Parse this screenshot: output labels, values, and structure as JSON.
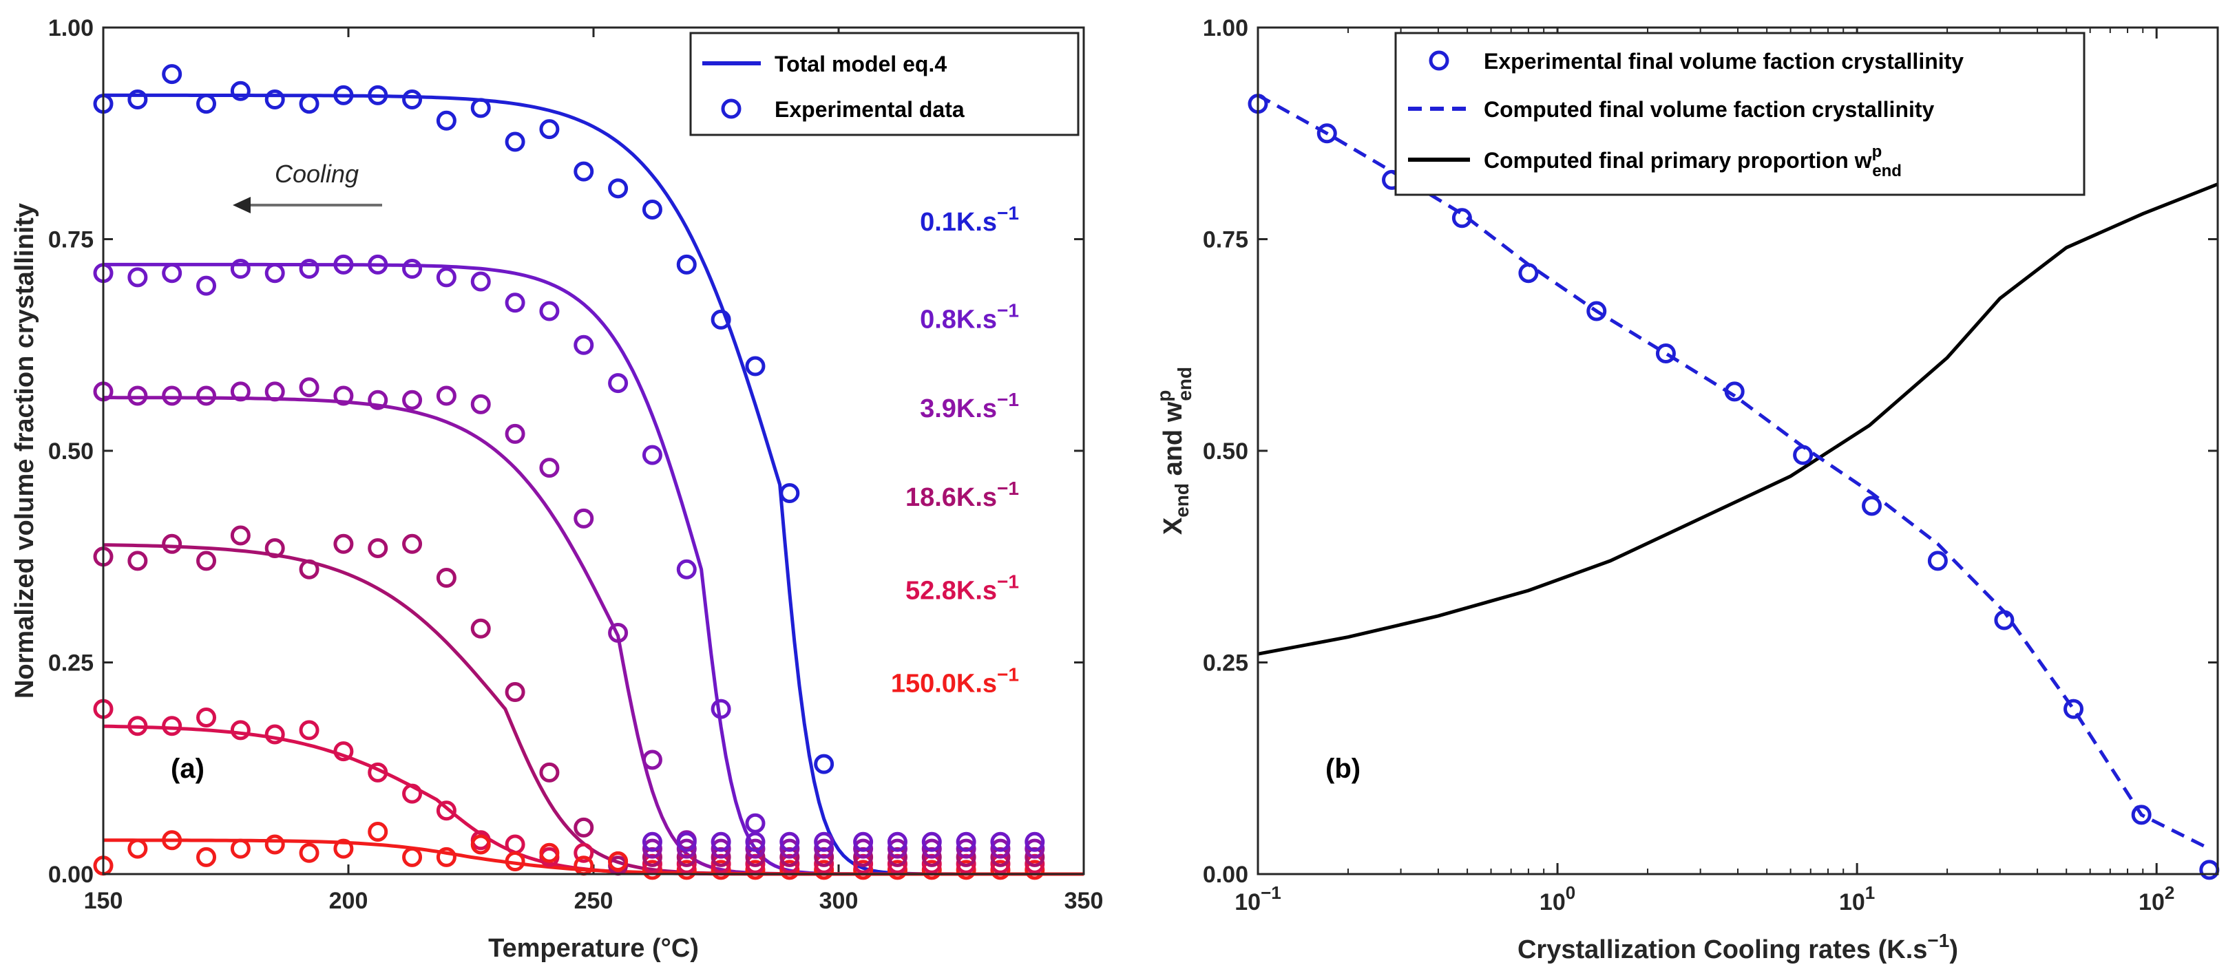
{
  "chart_data": [
    {
      "type": "line",
      "panel_label": "(a)",
      "xlabel": "Temperature (°C)",
      "ylabel": "Normalized volume fraction crystallinity",
      "xlim": [
        150,
        350
      ],
      "ylim": [
        0,
        1
      ],
      "xticks": [
        150,
        200,
        250,
        300,
        350
      ],
      "xtick_labels": [
        "150",
        "200",
        "250",
        "300",
        "350"
      ],
      "yticks": [
        0,
        0.25,
        0.5,
        0.75,
        1
      ],
      "ytick_labels": [
        "0.00",
        "0.25",
        "0.50",
        "0.75",
        "1.00"
      ],
      "legend": {
        "position": "top-right",
        "model": "Total model eq.4",
        "data": "Experimental data"
      },
      "annotation": {
        "text": "Cooling",
        "arrow_from": [
          210,
          0.79
        ],
        "arrow_to": [
          165,
          0.79
        ]
      },
      "series": [
        {
          "label": "0.1K.s",
          "exponent": "−1",
          "color": "#1f1fd6",
          "model": {
            "plateau": 0.92,
            "t_mid": 288,
            "width": 3.5,
            "skew": 12
          },
          "data": {
            "x": [
              150,
              157,
              164,
              171,
              178,
              185,
              192,
              199,
              206,
              213,
              220,
              227,
              234,
              241,
              248,
              255,
              262,
              269,
              276,
              283,
              290,
              297
            ],
            "y": [
              0.91,
              0.915,
              0.945,
              0.91,
              0.925,
              0.915,
              0.91,
              0.92,
              0.92,
              0.915,
              0.89,
              0.905,
              0.865,
              0.88,
              0.83,
              0.81,
              0.785,
              0.72,
              0.655,
              0.6,
              0.45,
              0.13
            ]
          }
        },
        {
          "label": "0.8K.s",
          "exponent": "−1",
          "color": "#6f18c6",
          "model": {
            "plateau": 0.72,
            "t_mid": 272,
            "width": 3.5,
            "skew": 9
          },
          "data": {
            "x": [
              150,
              157,
              164,
              171,
              178,
              185,
              192,
              199,
              206,
              213,
              220,
              227,
              234,
              241,
              248,
              255,
              262,
              269,
              276,
              283
            ],
            "y": [
              0.71,
              0.705,
              0.71,
              0.695,
              0.715,
              0.71,
              0.715,
              0.72,
              0.72,
              0.715,
              0.705,
              0.7,
              0.675,
              0.665,
              0.625,
              0.58,
              0.495,
              0.36,
              0.195,
              0.06
            ]
          }
        },
        {
          "label": "3.9K.s",
          "exponent": "−1",
          "color": "#8d13a6",
          "model": {
            "plateau": 0.563,
            "t_mid": 255,
            "width": 4.5,
            "skew": 12
          },
          "data": {
            "x": [
              150,
              157,
              164,
              171,
              178,
              185,
              192,
              199,
              206,
              213,
              220,
              227,
              234,
              241,
              248,
              255,
              262,
              269
            ],
            "y": [
              0.57,
              0.565,
              0.565,
              0.565,
              0.57,
              0.57,
              0.575,
              0.565,
              0.56,
              0.56,
              0.565,
              0.555,
              0.52,
              0.48,
              0.42,
              0.285,
              0.135,
              0.04
            ]
          }
        },
        {
          "label": "18.6K.s",
          "exponent": "−1",
          "color": "#a7106f",
          "model": {
            "plateau": 0.39,
            "t_mid": 232,
            "width": 7,
            "skew": 14
          },
          "data": {
            "x": [
              150,
              157,
              164,
              171,
              178,
              185,
              192,
              199,
              206,
              213,
              220,
              227,
              234,
              241,
              248,
              255
            ],
            "y": [
              0.375,
              0.37,
              0.39,
              0.37,
              0.4,
              0.385,
              0.36,
              0.39,
              0.385,
              0.39,
              0.35,
              0.29,
              0.215,
              0.12,
              0.055,
              0.01
            ]
          }
        },
        {
          "label": "52.8K.s",
          "exponent": "−1",
          "color": "#d81050",
          "model": {
            "plateau": 0.176,
            "t_mid": 218,
            "width": 9,
            "skew": 14
          },
          "data": {
            "x": [
              150,
              157,
              164,
              171,
              178,
              185,
              192,
              199,
              206,
              213,
              220,
              227,
              234,
              241,
              248,
              255
            ],
            "y": [
              0.195,
              0.175,
              0.175,
              0.185,
              0.17,
              0.165,
              0.17,
              0.145,
              0.12,
              0.095,
              0.075,
              0.04,
              0.035,
              0.02,
              0.025,
              0.015
            ]
          }
        },
        {
          "label": "150.0K.s",
          "exponent": "−1",
          "color": "#f21c1c",
          "model": {
            "plateau": 0.04,
            "t_mid": 225,
            "width": 12,
            "skew": 10
          },
          "data": {
            "x": [
              150,
              157,
              164,
              171,
              178,
              185,
              192,
              199,
              206,
              213,
              220,
              227,
              234,
              241,
              248,
              255
            ],
            "y": [
              0.01,
              0.03,
              0.04,
              0.02,
              0.03,
              0.035,
              0.025,
              0.03,
              0.05,
              0.02,
              0.02,
              0.035,
              0.015,
              0.025,
              0.01,
              0.015
            ]
          }
        }
      ],
      "tail_points": {
        "x": [
          262,
          269,
          276,
          283,
          290,
          297,
          305,
          312,
          319,
          326,
          333,
          340
        ],
        "offsets": [
          0.005,
          0.012,
          0.02,
          0.03,
          0.038
        ]
      }
    },
    {
      "type": "line",
      "panel_label": "(b)",
      "xlabel": "Crystallization Cooling rates (K.s",
      "xlabel_exponent": "−1",
      "xlabel_suffix": ")",
      "ylabel_parts": {
        "X": "X",
        "sub1": "end",
        "and": " and w",
        "sup": "p",
        "sub2": "end"
      },
      "xscale": "log",
      "xlim": [
        0.1,
        160
      ],
      "ylim": [
        0,
        1
      ],
      "xtick_exponents": [
        "−1",
        "0",
        "1",
        "2"
      ],
      "xtick_base": "10",
      "yticks": [
        0,
        0.25,
        0.5,
        0.75,
        1
      ],
      "ytick_labels": [
        "0.00",
        "0.25",
        "0.50",
        "0.75",
        "1.00"
      ],
      "legend": {
        "position": "top",
        "experimental": "Experimental final volume faction crystallinity",
        "computed_x": "Computed final volume faction crystallinity",
        "computed_w": "Computed final primary proportion w",
        "computed_w_sup": "p",
        "computed_w_sub": "end"
      },
      "colors": {
        "experimental": "#1f1fd6",
        "computed_x": "#1f1fd6",
        "computed_w": "#000000"
      },
      "experimental": {
        "x": [
          0.1,
          0.17,
          0.28,
          0.48,
          0.8,
          1.35,
          2.3,
          3.9,
          6.6,
          11.2,
          18.6,
          31,
          52.8,
          89,
          150
        ],
        "y": [
          0.91,
          0.875,
          0.82,
          0.775,
          0.71,
          0.665,
          0.615,
          0.57,
          0.495,
          0.435,
          0.37,
          0.3,
          0.195,
          0.07,
          0.005
        ]
      },
      "computed_x": {
        "x": [
          0.1,
          0.17,
          0.28,
          0.48,
          0.8,
          1.35,
          2.3,
          3.9,
          6.6,
          11.2,
          18.6,
          31,
          52.8,
          89,
          150
        ],
        "y": [
          0.92,
          0.875,
          0.83,
          0.78,
          0.72,
          0.665,
          0.615,
          0.565,
          0.505,
          0.45,
          0.39,
          0.31,
          0.195,
          0.07,
          0.03
        ]
      },
      "computed_w": {
        "x": [
          0.1,
          0.2,
          0.4,
          0.8,
          1.5,
          3,
          6,
          11,
          20,
          30,
          50,
          90,
          160
        ],
        "y": [
          0.26,
          0.28,
          0.305,
          0.335,
          0.37,
          0.42,
          0.47,
          0.53,
          0.61,
          0.68,
          0.74,
          0.78,
          0.815
        ]
      }
    }
  ]
}
